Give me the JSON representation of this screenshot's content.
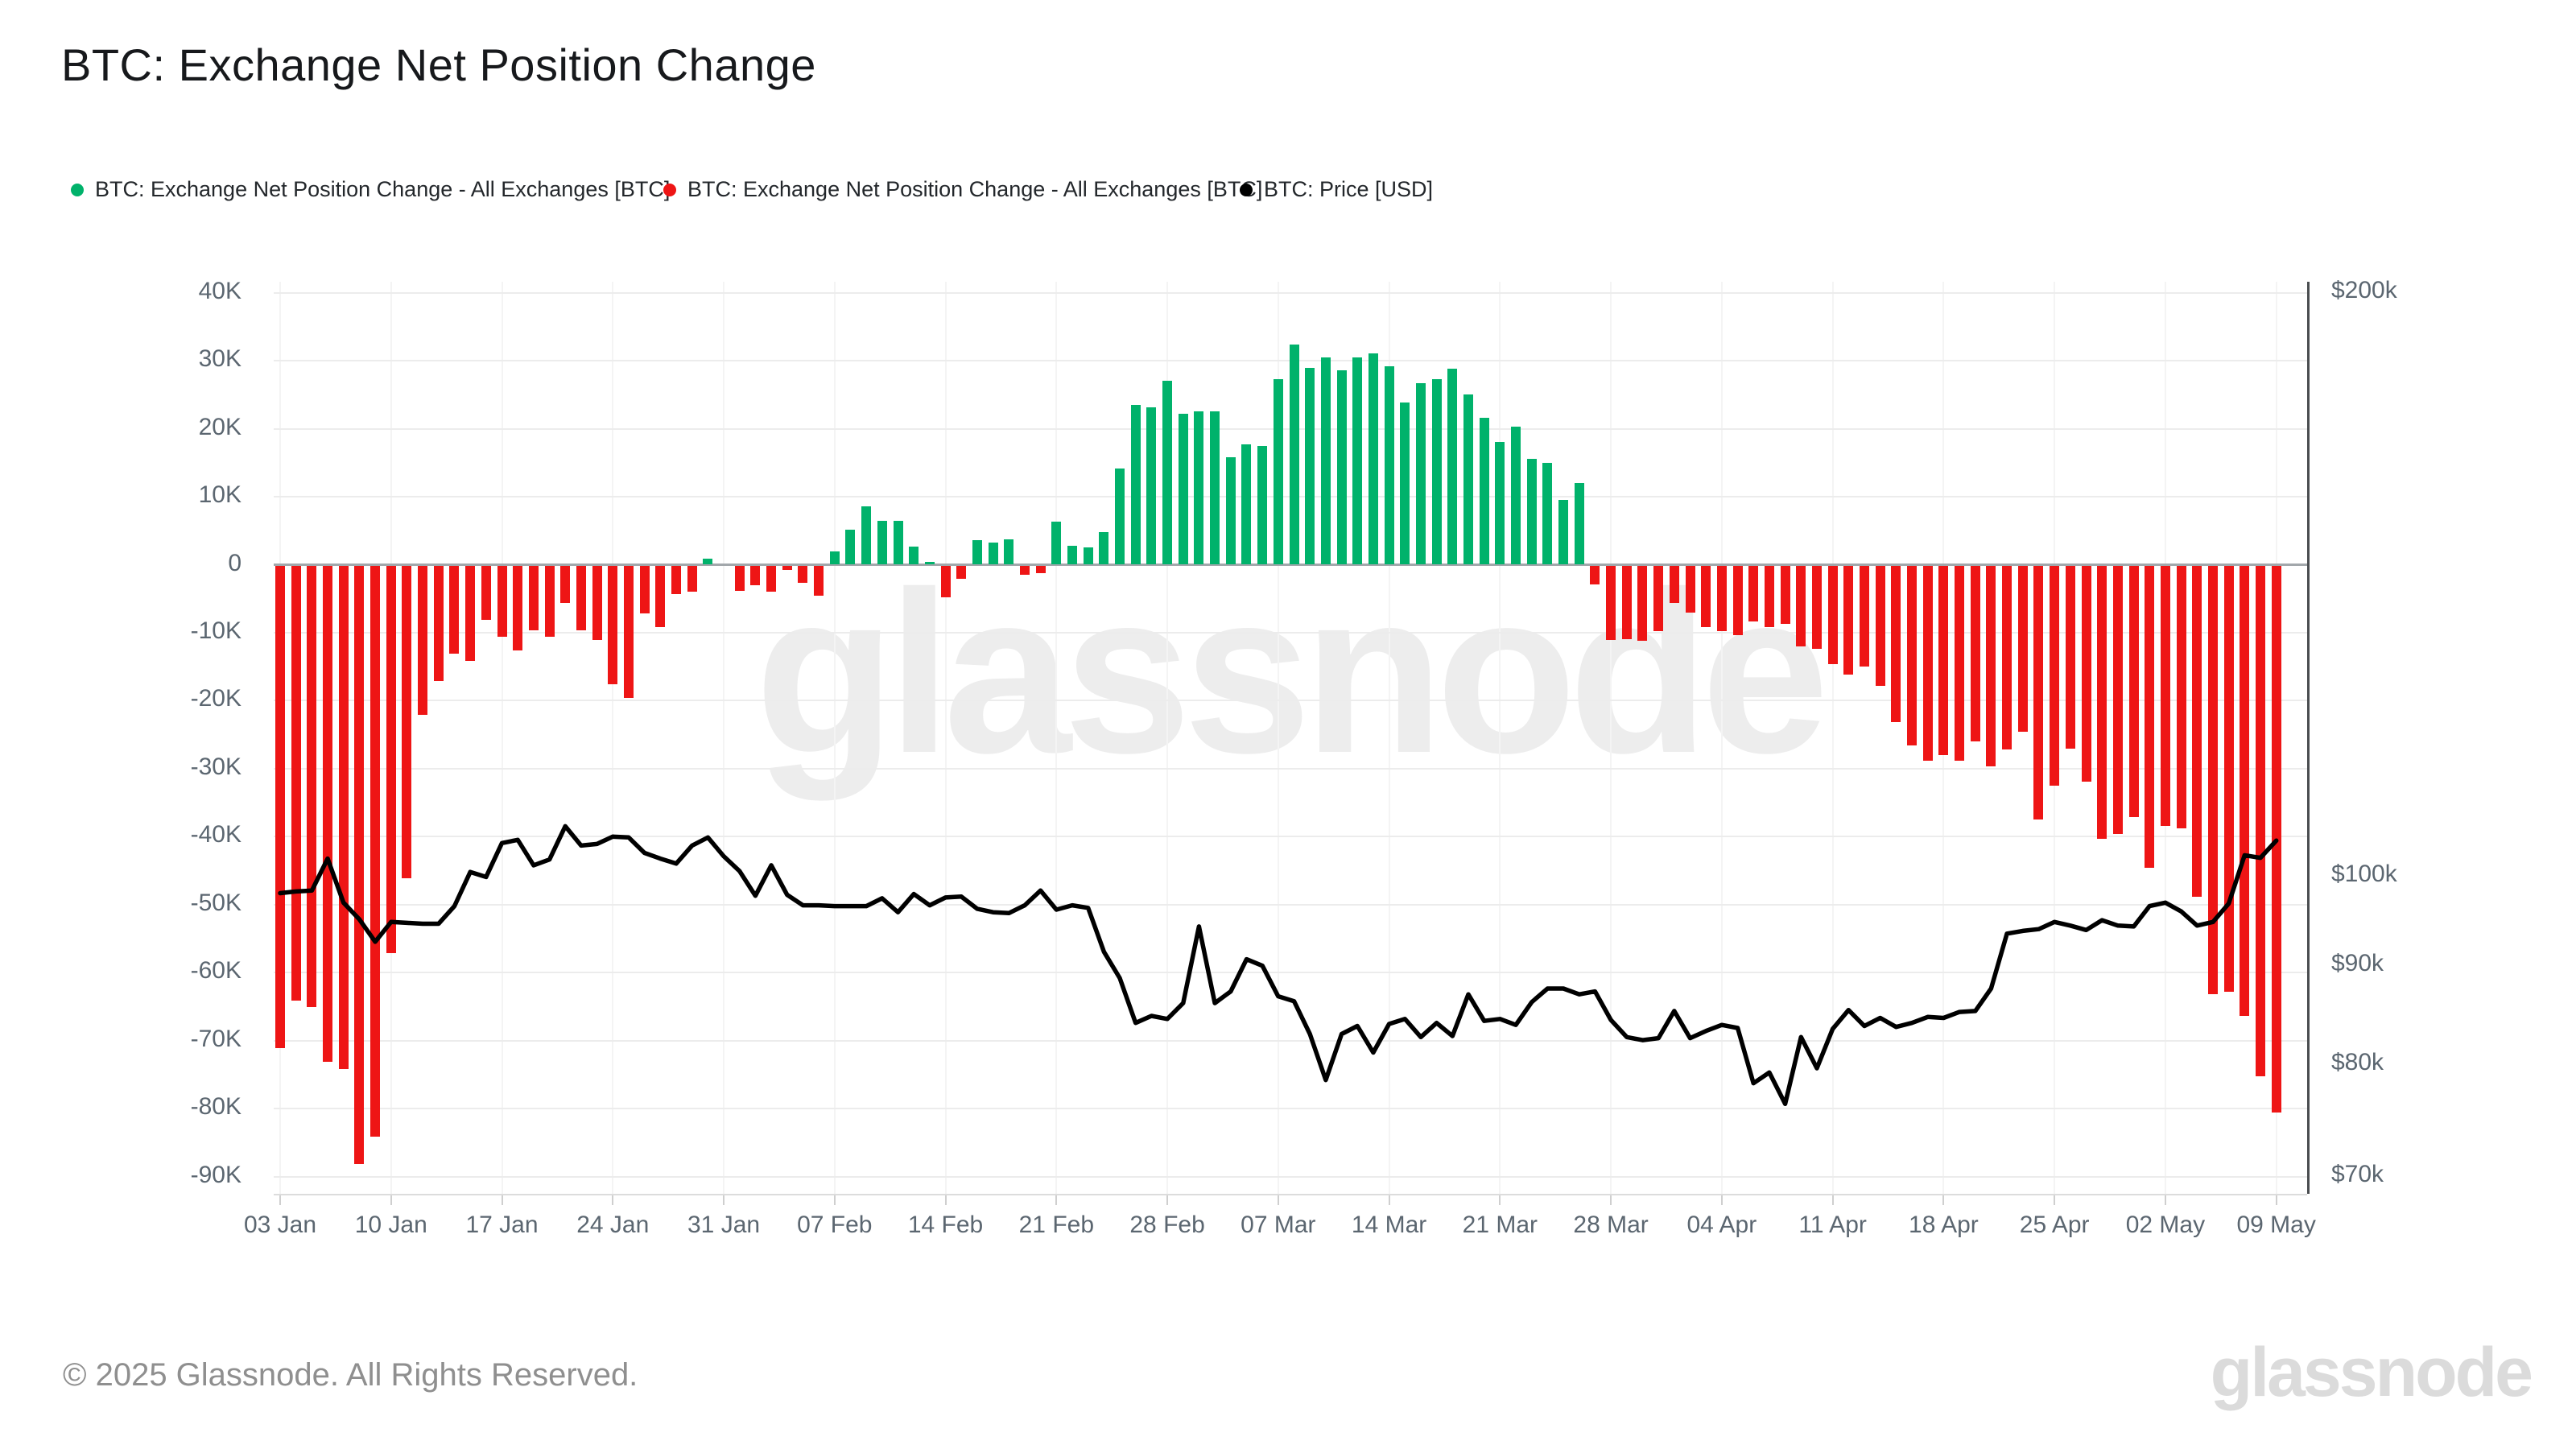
{
  "title": "BTC: Exchange Net Position Change",
  "legend": [
    {
      "label": "BTC: Exchange Net Position Change - All Exchanges [BTC]",
      "color": "#00b26b"
    },
    {
      "label": "BTC: Exchange Net Position Change - All Exchanges [BTC]",
      "color": "#ee1515"
    },
    {
      "label": "BTC: Price [USD]",
      "color": "#000000"
    }
  ],
  "watermark": "glassnode",
  "footer": {
    "copyright": "© 2025 Glassnode. All Rights Reserved.",
    "brand": "glassnode"
  },
  "chart_data": {
    "type": "bar+line",
    "title": "BTC: Exchange Net Position Change",
    "date_range": {
      "start": "03 Jan 2025",
      "end": "09 May 2025",
      "interval": "1 day"
    },
    "x_ticks": {
      "labels": [
        "03 Jan",
        "10 Jan",
        "17 Jan",
        "24 Jan",
        "31 Jan",
        "07 Feb",
        "14 Feb",
        "21 Feb",
        "28 Feb",
        "07 Mar",
        "14 Mar",
        "21 Mar",
        "28 Mar",
        "04 Apr",
        "11 Apr",
        "18 Apr",
        "25 Apr",
        "02 May",
        "09 May"
      ],
      "day_indices": [
        0,
        7,
        14,
        21,
        28,
        35,
        42,
        49,
        56,
        63,
        70,
        77,
        84,
        91,
        98,
        105,
        112,
        119,
        126
      ]
    },
    "left_axis": {
      "labels": [
        "40K",
        "30K",
        "20K",
        "10K",
        "0",
        "-10K",
        "-20K",
        "-30K",
        "-40K",
        "-50K",
        "-60K",
        "-70K",
        "-80K",
        "-90K"
      ],
      "values_k_btc": [
        40,
        30,
        20,
        10,
        0,
        -10,
        -20,
        -30,
        -40,
        -50,
        -60,
        -70,
        -80,
        -90
      ],
      "grid": true
    },
    "right_axis": {
      "labels": [
        "$200k",
        "$100k",
        "$90k",
        "$80k",
        "$70k"
      ],
      "values_k_usd": [
        200,
        100,
        90,
        80,
        70
      ],
      "scale": "log",
      "grid": false
    },
    "series": [
      {
        "name": "BTC: Exchange Net Position Change - All Exchanges [BTC]",
        "type": "bar",
        "unit": "K BTC",
        "positive_color": "#00b26b",
        "negative_color": "#ee1515",
        "values_k_btc": [
          -71,
          -64,
          -65,
          -73,
          -74,
          -88,
          -84,
          -57,
          -46,
          -22,
          -17,
          -13,
          -14,
          -8,
          -10.5,
          -12.5,
          -9.5,
          -10.5,
          -5.5,
          -9.5,
          -11,
          -17.5,
          -19.5,
          -7,
          -9,
          -4.2,
          -3.9,
          0.9,
          0,
          -3.7,
          -2.9,
          -3.9,
          -0.7,
          -2.6,
          -4.4,
          1.9,
          5.1,
          8.6,
          6.5,
          6.4,
          2.7,
          0.4,
          -4.7,
          -1.9,
          3.6,
          3.3,
          3.7,
          -1.4,
          -1.1,
          6.3,
          2.8,
          2.6,
          4.8,
          14.2,
          23.5,
          23.1,
          27.1,
          22.2,
          22.5,
          22.6,
          15.8,
          17.7,
          17.5,
          27.3,
          32.4,
          29,
          30.5,
          28.6,
          30.5,
          31.1,
          29.2,
          23.8,
          26.7,
          27.3,
          28.8,
          25.1,
          21.6,
          18.1,
          20.3,
          15.6,
          15,
          9.5,
          12,
          -2.8,
          -11,
          -10.8,
          -11.1,
          -9.6,
          -5.5,
          -6.9,
          -9.1,
          -9.6,
          -10.2,
          -8.2,
          -9.1,
          -8.6,
          -11.9,
          -12.2,
          -14.5,
          -16.1,
          -14.8,
          -17.7,
          -23,
          -26.5,
          -28.7,
          -27.9,
          -28.7,
          -25.9,
          -29.5,
          -27,
          -24.5,
          -37.3,
          -32.4,
          -26.9,
          -31.8,
          -40.2,
          -39.5,
          -37,
          -44.5,
          -38.3,
          -38.6,
          -48.7,
          -63.1,
          -62.7,
          -66.3,
          -75.1,
          -80.4
        ]
      },
      {
        "name": "BTC: Price [USD]",
        "type": "line",
        "unit": "k USD",
        "color": "#000000",
        "values_k_usd": [
          98.0,
          98.2,
          98.3,
          102.1,
          96.9,
          95.0,
          92.5,
          94.7,
          94.6,
          94.5,
          94.5,
          96.5,
          100.5,
          99.9,
          104.0,
          104.4,
          101.3,
          102.0,
          106.1,
          103.7,
          103.9,
          104.8,
          104.7,
          102.8,
          102.1,
          101.5,
          103.7,
          104.7,
          102.4,
          100.6,
          97.7,
          101.3,
          97.8,
          96.6,
          96.6,
          96.5,
          96.5,
          96.5,
          97.4,
          95.8,
          97.9,
          96.6,
          97.5,
          97.6,
          96.2,
          95.8,
          95.7,
          96.6,
          98.3,
          96.1,
          96.6,
          96.3,
          91.4,
          88.6,
          84.0,
          84.7,
          84.4,
          86.0,
          94.2,
          86.0,
          87.2,
          90.6,
          89.9,
          86.7,
          86.2,
          82.9,
          78.5,
          82.9,
          83.7,
          81.1,
          83.9,
          84.4,
          82.6,
          84.0,
          82.7,
          86.9,
          84.2,
          84.4,
          83.8,
          86.1,
          87.5,
          87.5,
          86.9,
          87.2,
          84.3,
          82.6,
          82.3,
          82.5,
          85.2,
          82.5,
          83.2,
          83.8,
          83.5,
          78.2,
          79.2,
          76.3,
          82.6,
          79.6,
          83.4,
          85.3,
          83.7,
          84.5,
          83.6,
          84.0,
          84.6,
          84.5,
          85.1,
          85.2,
          87.5,
          93.4,
          93.7,
          93.9,
          94.7,
          94.3,
          93.8,
          94.9,
          94.3,
          94.2,
          96.5,
          96.9,
          95.9,
          94.3,
          94.7,
          96.8,
          102.5,
          102.2,
          104.3
        ]
      }
    ],
    "legend_position": "top-left",
    "ylim_left_k_btc": [
      -90,
      40
    ],
    "ylim_right_k_usd": [
      70,
      200
    ]
  }
}
